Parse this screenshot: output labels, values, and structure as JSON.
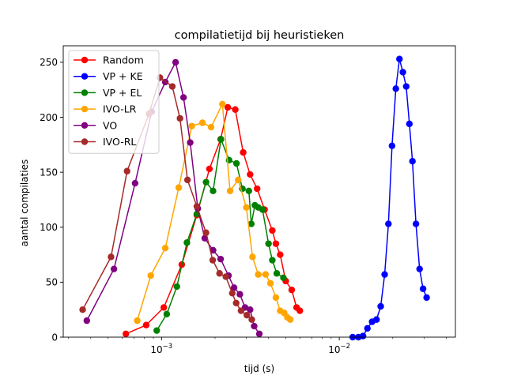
{
  "chart_data": {
    "type": "line",
    "title": "compilatietijd bij heuristieken",
    "xlabel": "tijd (s)",
    "ylabel": "aantal compilaties",
    "xscale": "log",
    "xlim": [
      0.00028,
      0.045
    ],
    "ylim": [
      0,
      265
    ],
    "yticks": [
      0,
      50,
      100,
      150,
      200,
      250
    ],
    "xticks": [
      {
        "value": 0.001,
        "label": "10",
        "exp": "−3"
      },
      {
        "value": 0.01,
        "label": "10",
        "exp": "−2"
      }
    ],
    "grid": false,
    "legend_position": "top-left",
    "series": [
      {
        "name": "Random",
        "color": "#ff0000",
        "points": [
          [
            0.00063,
            3
          ],
          [
            0.00082,
            11
          ],
          [
            0.00103,
            27
          ],
          [
            0.0013,
            66
          ],
          [
            0.00158,
            111
          ],
          [
            0.00186,
            153
          ],
          [
            0.00215,
            180
          ],
          [
            0.00236,
            209
          ],
          [
            0.0026,
            207
          ],
          [
            0.00288,
            168
          ],
          [
            0.00315,
            148
          ],
          [
            0.00345,
            135
          ],
          [
            0.0038,
            116
          ],
          [
            0.0042,
            97
          ],
          [
            0.0044,
            85
          ],
          [
            0.00465,
            75
          ],
          [
            0.005,
            51
          ],
          [
            0.0054,
            43
          ],
          [
            0.00575,
            27
          ],
          [
            0.006,
            24
          ]
        ]
      },
      {
        "name": "VP + KE",
        "color": "#0000ff",
        "points": [
          [
            0.0119,
            0
          ],
          [
            0.0128,
            0
          ],
          [
            0.0136,
            1
          ],
          [
            0.0144,
            8
          ],
          [
            0.0153,
            14
          ],
          [
            0.0162,
            16
          ],
          [
            0.0171,
            28
          ],
          [
            0.018,
            57
          ],
          [
            0.0189,
            103
          ],
          [
            0.0198,
            174
          ],
          [
            0.0208,
            226
          ],
          [
            0.0218,
            253
          ],
          [
            0.0228,
            241
          ],
          [
            0.0238,
            228
          ],
          [
            0.0248,
            194
          ],
          [
            0.0258,
            160
          ],
          [
            0.027,
            103
          ],
          [
            0.0283,
            62
          ],
          [
            0.0296,
            44
          ],
          [
            0.031,
            36
          ]
        ]
      },
      {
        "name": "VP + EL",
        "color": "#008000",
        "points": [
          [
            0.00094,
            6
          ],
          [
            0.00107,
            21
          ],
          [
            0.00122,
            46
          ],
          [
            0.00139,
            86
          ],
          [
            0.00158,
            112
          ],
          [
            0.00178,
            141
          ],
          [
            0.00195,
            133
          ],
          [
            0.00216,
            180
          ],
          [
            0.0024,
            161
          ],
          [
            0.00264,
            158
          ],
          [
            0.00285,
            135
          ],
          [
            0.0031,
            133
          ],
          [
            0.0032,
            103
          ],
          [
            0.00335,
            120
          ],
          [
            0.0035,
            118
          ],
          [
            0.0037,
            116
          ],
          [
            0.004,
            85
          ],
          [
            0.0042,
            70
          ],
          [
            0.00445,
            58
          ],
          [
            0.00485,
            54
          ]
        ]
      },
      {
        "name": "IVO-LR",
        "color": "#ffa500",
        "points": [
          [
            0.00073,
            15
          ],
          [
            0.00087,
            56
          ],
          [
            0.00105,
            81
          ],
          [
            0.00125,
            136
          ],
          [
            0.00148,
            192
          ],
          [
            0.0017,
            195
          ],
          [
            0.0019,
            191
          ],
          [
            0.0022,
            212
          ],
          [
            0.00243,
            133
          ],
          [
            0.0027,
            143
          ],
          [
            0.003,
            118
          ],
          [
            0.00325,
            73
          ],
          [
            0.0035,
            57
          ],
          [
            0.00385,
            57
          ],
          [
            0.0041,
            49
          ],
          [
            0.0044,
            36
          ],
          [
            0.00465,
            24
          ],
          [
            0.0049,
            22
          ],
          [
            0.0051,
            18
          ],
          [
            0.0053,
            16
          ]
        ]
      },
      {
        "name": "VO",
        "color": "#800080",
        "points": [
          [
            0.00038,
            15
          ],
          [
            0.00054,
            62
          ],
          [
            0.00071,
            140
          ],
          [
            0.00088,
            205
          ],
          [
            0.00105,
            232
          ],
          [
            0.0012,
            250
          ],
          [
            0.00133,
            218
          ],
          [
            0.00145,
            177
          ],
          [
            0.0016,
            117
          ],
          [
            0.00175,
            90
          ],
          [
            0.00195,
            79
          ],
          [
            0.00215,
            71
          ],
          [
            0.00238,
            56
          ],
          [
            0.00256,
            45
          ],
          [
            0.00276,
            39
          ],
          [
            0.00295,
            27
          ],
          [
            0.00315,
            25
          ],
          [
            0.00332,
            10
          ],
          [
            0.00355,
            3
          ]
        ]
      },
      {
        "name": "IVO-RL",
        "color": "#a52a2a",
        "points": [
          [
            0.00036,
            25
          ],
          [
            0.00052,
            73
          ],
          [
            0.00064,
            151
          ],
          [
            0.00085,
            203
          ],
          [
            0.00098,
            236
          ],
          [
            0.00115,
            228
          ],
          [
            0.00127,
            199
          ],
          [
            0.0014,
            143
          ],
          [
            0.00158,
            119
          ],
          [
            0.00178,
            95
          ],
          [
            0.00194,
            70
          ],
          [
            0.00212,
            58
          ],
          [
            0.0023,
            55
          ],
          [
            0.0025,
            40
          ],
          [
            0.00263,
            31
          ],
          [
            0.0028,
            24
          ],
          [
            0.00302,
            20
          ],
          [
            0.00322,
            16
          ]
        ]
      }
    ]
  }
}
